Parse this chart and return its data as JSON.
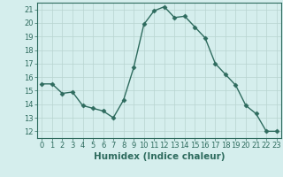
{
  "x": [
    0,
    1,
    2,
    3,
    4,
    5,
    6,
    7,
    8,
    9,
    10,
    11,
    12,
    13,
    14,
    15,
    16,
    17,
    18,
    19,
    20,
    21,
    22,
    23
  ],
  "y": [
    15.5,
    15.5,
    14.8,
    14.9,
    13.9,
    13.7,
    13.5,
    13.0,
    14.3,
    16.7,
    19.9,
    20.9,
    21.2,
    20.4,
    20.5,
    19.7,
    18.9,
    17.0,
    16.2,
    15.4,
    13.9,
    13.3,
    12.0,
    12.0
  ],
  "line_color": "#2e6b5e",
  "marker": "D",
  "markersize": 2.5,
  "linewidth": 1.0,
  "background_color": "#d5eeed",
  "grid_color": "#b8d4d0",
  "xlabel": "Humidex (Indice chaleur)",
  "xlim": [
    -0.5,
    23.5
  ],
  "ylim": [
    11.5,
    21.5
  ],
  "yticks": [
    12,
    13,
    14,
    15,
    16,
    17,
    18,
    19,
    20,
    21
  ],
  "xticks": [
    0,
    1,
    2,
    3,
    4,
    5,
    6,
    7,
    8,
    9,
    10,
    11,
    12,
    13,
    14,
    15,
    16,
    17,
    18,
    19,
    20,
    21,
    22,
    23
  ],
  "tick_color": "#2e6b5e",
  "label_color": "#2e6b5e",
  "xlabel_fontsize": 7.5,
  "tick_fontsize": 6.0
}
